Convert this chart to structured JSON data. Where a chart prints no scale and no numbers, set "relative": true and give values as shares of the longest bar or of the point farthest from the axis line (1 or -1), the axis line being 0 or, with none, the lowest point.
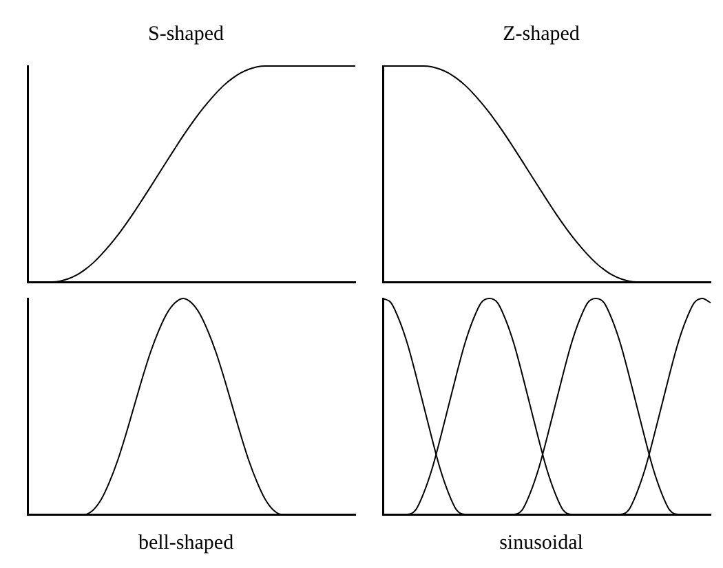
{
  "chart_data": [
    {
      "type": "line",
      "title": "S-shaped",
      "relative": true,
      "categories": [
        null,
        null,
        null,
        null,
        null,
        null,
        null,
        null,
        null,
        null,
        null,
        null,
        null,
        null,
        null,
        null,
        null,
        null,
        null,
        null,
        null,
        null,
        null,
        null,
        null,
        null,
        null,
        null,
        null,
        null,
        null,
        null,
        null,
        null,
        null,
        null,
        null,
        null,
        null,
        null,
        null
      ],
      "series": [
        {
          "color": "#000000",
          "values": [
            0,
            0,
            0,
            0,
            0.004,
            0.015,
            0.032,
            0.057,
            0.088,
            0.126,
            0.169,
            0.216,
            0.268,
            0.323,
            0.381,
            0.44,
            0.5,
            0.56,
            0.619,
            0.677,
            0.732,
            0.784,
            0.831,
            0.874,
            0.912,
            0.943,
            0.968,
            0.985,
            0.996,
            1,
            1,
            1,
            1,
            1,
            1,
            1,
            1,
            1,
            1,
            1,
            1
          ]
        }
      ]
    },
    {
      "type": "line",
      "title": "Z-shaped",
      "relative": true,
      "categories": [
        null,
        null,
        null,
        null,
        null,
        null,
        null,
        null,
        null,
        null,
        null,
        null,
        null,
        null,
        null,
        null,
        null,
        null,
        null,
        null,
        null,
        null,
        null,
        null,
        null,
        null,
        null,
        null,
        null,
        null,
        null,
        null,
        null,
        null,
        null,
        null,
        null,
        null,
        null,
        null,
        null
      ],
      "series": [
        {
          "color": "#000000",
          "values": [
            1,
            1,
            1,
            1,
            1,
            1,
            0.996,
            0.985,
            0.968,
            0.943,
            0.912,
            0.874,
            0.831,
            0.784,
            0.732,
            0.677,
            0.619,
            0.56,
            0.5,
            0.44,
            0.381,
            0.323,
            0.268,
            0.216,
            0.169,
            0.126,
            0.088,
            0.057,
            0.032,
            0.015,
            0.004,
            0,
            0,
            0,
            0,
            0,
            0,
            0,
            0,
            0,
            0
          ]
        }
      ]
    },
    {
      "type": "line",
      "title": "bell-shaped",
      "relative": true,
      "categories": [
        null,
        null,
        null,
        null,
        null,
        null,
        null,
        null,
        null,
        null,
        null,
        null,
        null,
        null,
        null,
        null,
        null,
        null,
        null,
        null,
        null,
        null,
        null,
        null,
        null,
        null,
        null,
        null,
        null,
        null,
        null,
        null,
        null,
        null,
        null,
        null,
        null,
        null,
        null,
        null,
        null
      ],
      "series": [
        {
          "color": "#000000",
          "values": [
            0,
            0,
            0,
            0,
            0,
            0,
            0,
            0,
            0.02,
            0.07,
            0.15,
            0.25,
            0.37,
            0.5,
            0.63,
            0.75,
            0.85,
            0.93,
            0.98,
            1,
            0.98,
            0.93,
            0.85,
            0.75,
            0.63,
            0.5,
            0.37,
            0.25,
            0.15,
            0.07,
            0.02,
            0,
            0,
            0,
            0,
            0,
            0,
            0,
            0,
            0,
            0
          ]
        }
      ]
    },
    {
      "type": "line",
      "title": "sinusoidal",
      "relative": true,
      "categories": [
        null,
        null,
        null,
        null,
        null,
        null,
        null,
        null,
        null,
        null,
        null,
        null,
        null,
        null,
        null,
        null,
        null,
        null,
        null,
        null,
        null,
        null,
        null,
        null,
        null,
        null,
        null,
        null,
        null,
        null,
        null,
        null,
        null,
        null,
        null,
        null,
        null,
        null,
        null,
        null,
        null
      ],
      "series": [
        {
          "color": "#000000",
          "values": [
            1,
            0.98,
            0.9,
            0.79,
            0.65,
            0.5,
            0.35,
            0.21,
            0.1,
            0.02,
            0,
            0,
            0,
            0,
            0,
            0,
            0,
            0.02,
            0.1,
            0.21,
            0.35,
            0.5,
            0.65,
            0.79,
            0.9,
            0.98,
            1,
            0.98,
            0.9,
            0.79,
            0.65,
            0.5,
            0.35,
            0.21,
            0.1,
            0.02,
            0,
            0,
            0,
            0,
            0
          ]
        },
        {
          "color": "#000000",
          "values": [
            0,
            0,
            0,
            0,
            0.02,
            0.1,
            0.21,
            0.35,
            0.5,
            0.65,
            0.79,
            0.9,
            0.98,
            1,
            0.98,
            0.9,
            0.79,
            0.65,
            0.5,
            0.35,
            0.21,
            0.1,
            0.02,
            0,
            0,
            0,
            0,
            0,
            0,
            0,
            0.02,
            0.1,
            0.21,
            0.35,
            0.5,
            0.65,
            0.79,
            0.9,
            0.98,
            1,
            0.98
          ]
        }
      ]
    }
  ]
}
